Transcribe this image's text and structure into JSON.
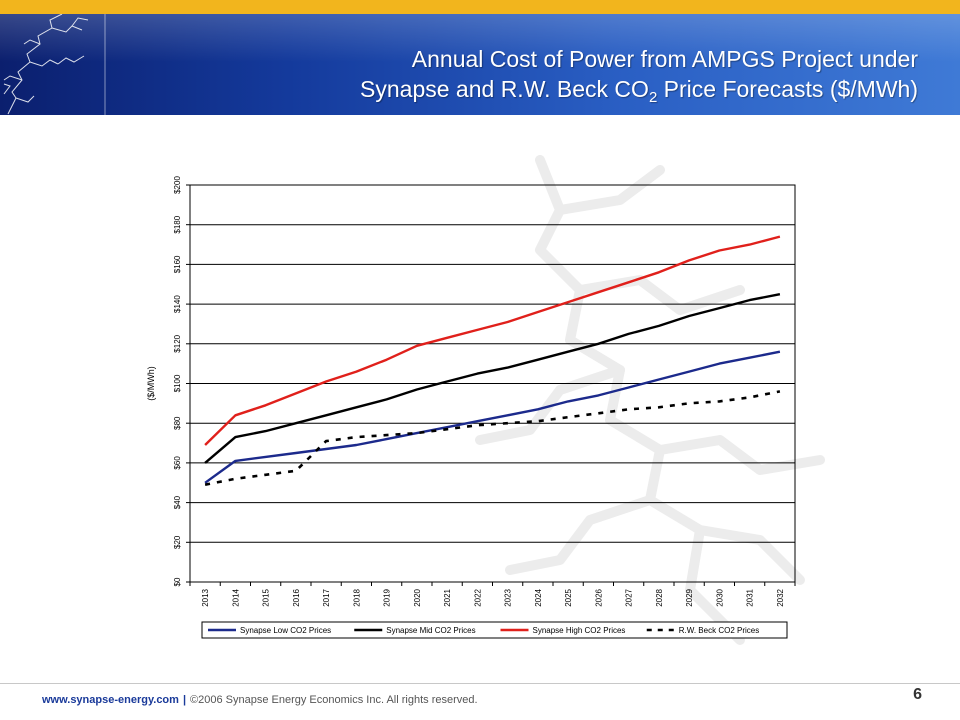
{
  "slide": {
    "title_line1": "Annual Cost of Power from AMPGS Project under",
    "title_line2_prefix": "Synapse and R.W. Beck CO",
    "title_line2_sub": "2",
    "title_line2_suffix": " Price Forecasts ($/MWh)",
    "footer_url": "www.synapse-energy.com",
    "footer_separator": "|",
    "footer_copyright": "©2006 Synapse Energy Economics Inc. All rights reserved.",
    "page_number": "6"
  },
  "colors": {
    "accent_bar": "#f2b51d",
    "header_blue": "#143a9c"
  },
  "chart_data": {
    "type": "line",
    "title": "",
    "xlabel": "",
    "ylabel": "($/MWh)",
    "ylim": [
      0,
      200
    ],
    "yticks": [
      "$0",
      "$20",
      "$40",
      "$60",
      "$80",
      "$100",
      "$120",
      "$140",
      "$160",
      "$180",
      "$200"
    ],
    "categories": [
      "2013",
      "2014",
      "2015",
      "2016",
      "2017",
      "2018",
      "2019",
      "2020",
      "2021",
      "2022",
      "2023",
      "2024",
      "2025",
      "2026",
      "2027",
      "2028",
      "2029",
      "2030",
      "2031",
      "2032"
    ],
    "grid": "horizontal",
    "legend_position": "bottom",
    "series": [
      {
        "name": "Synapse Low CO2 Prices",
        "color": "#1c2a8c",
        "dash": "solid",
        "values": [
          50,
          61,
          63,
          65,
          67,
          69,
          72,
          75,
          78,
          81,
          84,
          87,
          91,
          94,
          98,
          102,
          106,
          110,
          113,
          116
        ]
      },
      {
        "name": "Synapse Mid CO2 Prices",
        "color": "#000000",
        "dash": "solid",
        "values": [
          60,
          73,
          76,
          80,
          84,
          88,
          92,
          97,
          101,
          105,
          108,
          112,
          116,
          120,
          125,
          129,
          134,
          138,
          142,
          145
        ]
      },
      {
        "name": "Synapse High CO2 Prices",
        "color": "#e0201b",
        "dash": "solid",
        "values": [
          69,
          84,
          89,
          95,
          101,
          106,
          112,
          119,
          123,
          127,
          131,
          136,
          141,
          146,
          151,
          156,
          162,
          167,
          170,
          174
        ]
      },
      {
        "name": "R.W. Beck CO2 Prices",
        "color": "#000000",
        "dash": "dashed",
        "values": [
          49,
          52,
          54,
          56,
          71,
          73,
          74,
          75,
          77,
          79,
          80,
          81,
          83,
          85,
          87,
          88,
          90,
          91,
          93,
          96
        ]
      }
    ]
  }
}
